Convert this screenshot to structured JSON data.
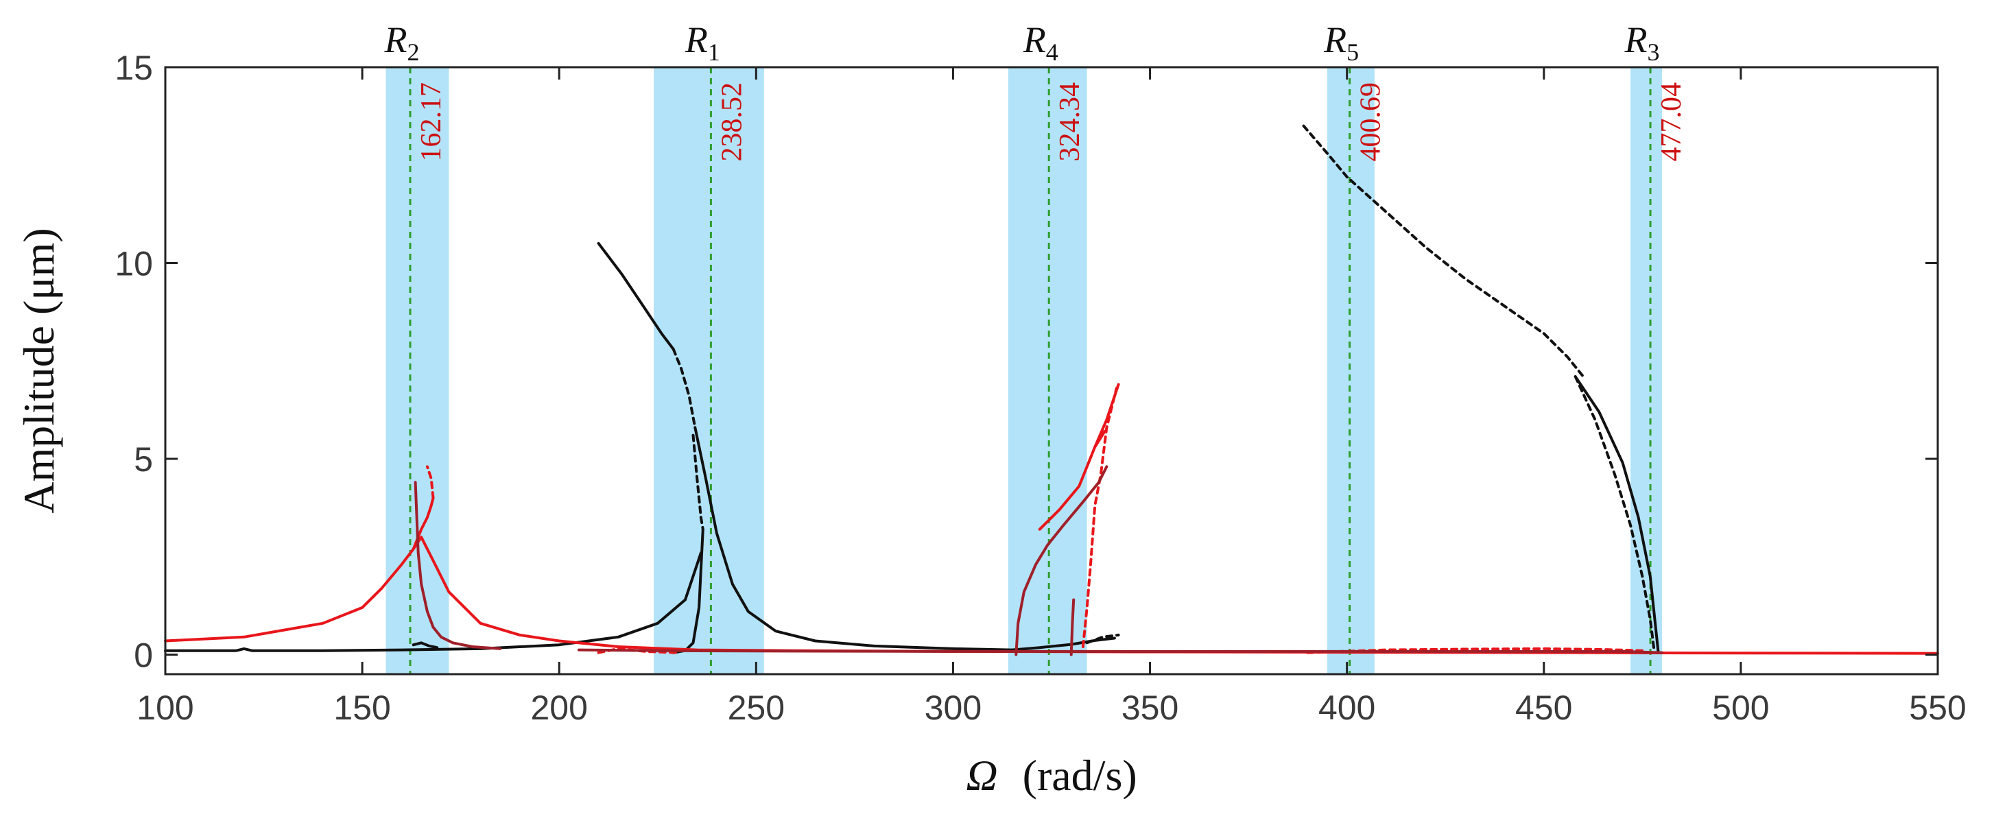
{
  "chart_data": {
    "type": "line",
    "title": "",
    "xlabel_symbol": "Ω",
    "xlabel_unit": "(rad/s)",
    "ylabel": "Amplitude (μm)",
    "xlim": [
      100,
      550
    ],
    "ylim": [
      -0.5,
      15
    ],
    "xticks": [
      100,
      150,
      200,
      250,
      300,
      350,
      400,
      450,
      500,
      550
    ],
    "yticks": [
      0,
      5,
      10,
      15
    ],
    "grid": false,
    "colors": {
      "band": "#b3e3f8",
      "marker": "#2e9e2e",
      "value_text": "#cc1111",
      "black_series": "#111111",
      "red_series": "#e8161b",
      "darkred_series": "#a0202a"
    },
    "resonances": [
      {
        "letter": "R",
        "sub": "2",
        "freq": 162.17,
        "label": "162.17",
        "band": [
          156,
          172
        ]
      },
      {
        "letter": "R",
        "sub": "1",
        "freq": 238.52,
        "label": "238.52",
        "band": [
          224,
          252
        ]
      },
      {
        "letter": "R",
        "sub": "4",
        "freq": 324.34,
        "label": "324.34",
        "band": [
          314,
          334
        ]
      },
      {
        "letter": "R",
        "sub": "5",
        "freq": 400.69,
        "label": "400.69",
        "band": [
          395,
          407
        ]
      },
      {
        "letter": "R",
        "sub": "3",
        "freq": 477.04,
        "label": "477.04",
        "band": [
          472,
          480
        ]
      }
    ],
    "series": [
      {
        "name": "black-baseline",
        "color": "#111111",
        "dash": false,
        "x": [
          100,
          118,
          120,
          122,
          140,
          160,
          180,
          200,
          215,
          225,
          232,
          236
        ],
        "y": [
          0.1,
          0.1,
          0.15,
          0.1,
          0.1,
          0.12,
          0.15,
          0.25,
          0.45,
          0.8,
          1.4,
          2.6
        ]
      },
      {
        "name": "black-R1-backbone-upper",
        "color": "#111111",
        "dash": false,
        "x": [
          210,
          216,
          222,
          226,
          229
        ],
        "y": [
          10.5,
          9.7,
          8.8,
          8.2,
          7.8
        ]
      },
      {
        "name": "black-R1-backbone-unstable",
        "color": "#111111",
        "dash": true,
        "x": [
          229,
          231,
          233,
          234.5
        ],
        "y": [
          7.8,
          7.3,
          6.6,
          5.8
        ]
      },
      {
        "name": "black-R1-backbone-lower",
        "color": "#111111",
        "dash": false,
        "x": [
          234.5,
          237,
          240,
          244,
          248,
          255,
          265,
          280,
          300,
          315
        ],
        "y": [
          5.8,
          4.6,
          3.1,
          1.8,
          1.1,
          0.6,
          0.35,
          0.22,
          0.15,
          0.12
        ]
      },
      {
        "name": "black-R1-cusp",
        "color": "#111111",
        "dash": false,
        "x": [
          229,
          232,
          234,
          235.5,
          236.5
        ],
        "y": [
          0.05,
          0.1,
          0.3,
          1.2,
          3.2
        ]
      },
      {
        "name": "black-R1-unstable",
        "color": "#111111",
        "dash": true,
        "x": [
          234,
          235,
          236,
          236.5
        ],
        "y": [
          5.6,
          4.5,
          3.5,
          3.2
        ]
      },
      {
        "name": "black-R2-small",
        "color": "#111111",
        "dash": false,
        "x": [
          163,
          165,
          167,
          169
        ],
        "y": [
          0.25,
          0.3,
          0.22,
          0.18
        ]
      },
      {
        "name": "black-R4-small",
        "color": "#111111",
        "dash": false,
        "x": [
          315,
          322,
          330,
          336,
          341
        ],
        "y": [
          0.12,
          0.18,
          0.26,
          0.36,
          0.42
        ]
      },
      {
        "name": "black-R4-small-unstable",
        "color": "#111111",
        "dash": true,
        "x": [
          334,
          338,
          342
        ],
        "y": [
          0.3,
          0.45,
          0.5
        ]
      },
      {
        "name": "black-R3-upper",
        "color": "#111111",
        "dash": true,
        "x": [
          389,
          395,
          400,
          410,
          420,
          430,
          440,
          450,
          456,
          460
        ],
        "y": [
          13.5,
          12.8,
          12.2,
          11.3,
          10.4,
          9.6,
          8.9,
          8.2,
          7.6,
          7.1
        ]
      },
      {
        "name": "black-R3-unstable",
        "color": "#111111",
        "dash": true,
        "x": [
          458,
          463,
          468,
          472,
          475,
          477,
          478
        ],
        "y": [
          7.1,
          6.0,
          4.6,
          3.3,
          2.0,
          0.9,
          0.1
        ]
      },
      {
        "name": "black-R3-stable",
        "color": "#111111",
        "dash": false,
        "x": [
          458,
          464,
          470,
          474,
          477,
          479
        ],
        "y": [
          7.1,
          6.2,
          4.9,
          3.5,
          2.0,
          0.1
        ]
      },
      {
        "name": "red-baseline",
        "color": "#e8161b",
        "dash": false,
        "x": [
          100,
          120,
          140,
          150,
          155,
          160,
          163,
          165,
          168,
          172,
          180,
          190,
          200,
          215,
          235,
          260,
          300,
          350,
          400,
          450,
          500,
          550
        ],
        "y": [
          0.35,
          0.45,
          0.8,
          1.2,
          1.7,
          2.3,
          2.7,
          3.0,
          2.4,
          1.6,
          0.8,
          0.5,
          0.35,
          0.2,
          0.12,
          0.1,
          0.08,
          0.07,
          0.06,
          0.05,
          0.04,
          0.03
        ]
      },
      {
        "name": "red-R2-loop",
        "color": "#e8161b",
        "dash": false,
        "x": [
          163,
          165,
          166.5,
          167.5,
          168
        ],
        "y": [
          2.7,
          3.2,
          3.5,
          3.8,
          4.0
        ]
      },
      {
        "name": "red-R2-loop-unstable",
        "color": "#e8161b",
        "dash": true,
        "x": [
          168,
          167.5,
          166.5
        ],
        "y": [
          4.0,
          4.5,
          4.8
        ]
      },
      {
        "name": "red-R4-rise",
        "color": "#e8161b",
        "dash": false,
        "x": [
          322,
          327,
          332,
          336,
          338.5
        ],
        "y": [
          3.2,
          3.7,
          4.3,
          5.3,
          5.7
        ]
      },
      {
        "name": "red-R4-unstable",
        "color": "#e8161b",
        "dash": true,
        "x": [
          333,
          334,
          335,
          336,
          337.5,
          339,
          341.5
        ],
        "y": [
          0.2,
          1.2,
          2.4,
          3.8,
          4.6,
          5.8,
          6.8
        ]
      },
      {
        "name": "red-R4-top",
        "color": "#e8161b",
        "dash": false,
        "x": [
          336,
          339,
          341,
          342
        ],
        "y": [
          5.3,
          6.0,
          6.6,
          6.9
        ]
      },
      {
        "name": "red-low-unstable-1",
        "color": "#e8161b",
        "dash": true,
        "x": [
          210,
          215,
          222,
          230
        ],
        "y": [
          0.05,
          0.15,
          0.08,
          0.05
        ]
      },
      {
        "name": "red-low-unstable-2",
        "color": "#e8161b",
        "dash": true,
        "x": [
          390,
          410,
          430,
          450,
          465,
          475
        ],
        "y": [
          0.05,
          0.12,
          0.14,
          0.15,
          0.13,
          0.1
        ]
      },
      {
        "name": "darkred-R2",
        "color": "#a0202a",
        "dash": false,
        "x": [
          163.5,
          163.8,
          164.2,
          165,
          166.5,
          168,
          170,
          173,
          178,
          185
        ],
        "y": [
          4.4,
          3.6,
          2.6,
          1.8,
          1.1,
          0.7,
          0.45,
          0.3,
          0.2,
          0.15
        ]
      },
      {
        "name": "darkred-R4-left",
        "color": "#a0202a",
        "dash": false,
        "x": [
          316,
          316.5,
          318,
          321,
          324,
          328,
          333,
          337,
          339
        ],
        "y": [
          0.0,
          0.8,
          1.6,
          2.3,
          2.8,
          3.3,
          3.9,
          4.4,
          4.8
        ]
      },
      {
        "name": "darkred-R4-right",
        "color": "#a0202a",
        "dash": false,
        "x": [
          330,
          330.3,
          330.6
        ],
        "y": [
          0.0,
          0.8,
          1.4
        ]
      },
      {
        "name": "darkred-low",
        "color": "#a0202a",
        "dash": false,
        "x": [
          205,
          225,
          250,
          300,
          350,
          400,
          470,
          480
        ],
        "y": [
          0.12,
          0.1,
          0.09,
          0.08,
          0.08,
          0.08,
          0.08,
          0.05
        ]
      }
    ]
  }
}
